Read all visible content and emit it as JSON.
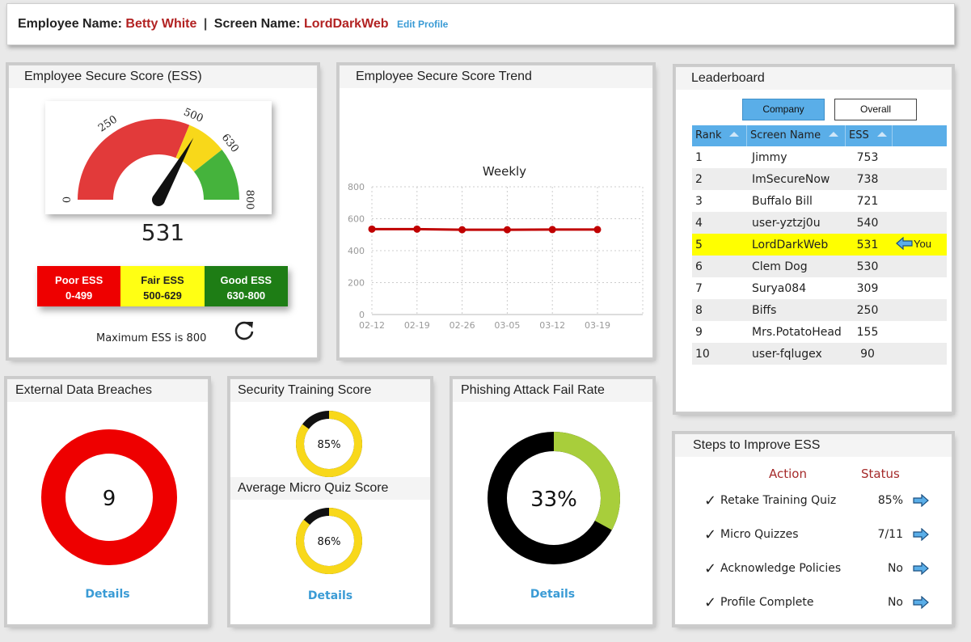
{
  "header": {
    "employee_label": "Employee Name:",
    "employee_name": "Betty White",
    "separator": "|",
    "screen_label": "Screen Name:",
    "screen_name": "LordDarkWeb",
    "edit_link": "Edit Profile"
  },
  "ess": {
    "title": "Employee Secure Score (ESS)",
    "score": "531",
    "score_value": 531,
    "gauge_ticks": [
      "0",
      "250",
      "500",
      "630",
      "800"
    ],
    "legend": [
      {
        "name": "Poor ESS",
        "range": "0-499",
        "bg": "#ee0000",
        "fg": "#ffffff"
      },
      {
        "name": "Fair ESS",
        "range": "500-629",
        "bg": "#ffff14",
        "fg": "#222222"
      },
      {
        "name": "Good ESS",
        "range": "630-800",
        "bg": "#1e7d15",
        "fg": "#ffffff"
      }
    ],
    "max_text": "Maximum ESS is 800",
    "colors": {
      "poor": "#e23a3a",
      "fair": "#f8d81a",
      "good": "#45b33c"
    }
  },
  "trend": {
    "title": "Employee Secure Score Trend",
    "line_color": "#c00000"
  },
  "chart_data": {
    "type": "line",
    "title": "Weekly",
    "xlabel": "",
    "ylabel": "",
    "categories": [
      "02-12",
      "02-19",
      "02-26",
      "03-05",
      "03-12",
      "03-19"
    ],
    "y_ticks": [
      "800",
      "600",
      "400",
      "200",
      "0"
    ],
    "ylim": [
      0,
      800
    ],
    "grid": true,
    "series": [
      {
        "values": [
          535,
          535,
          531,
          531,
          532,
          532
        ]
      }
    ]
  },
  "leaderboard": {
    "title": "Leaderboard",
    "tab_company": "Company",
    "tab_overall": "Overall",
    "columns": {
      "rank": "Rank",
      "name": "Screen Name",
      "ess": "ESS"
    },
    "rows": [
      {
        "rank": "1",
        "name": "Jimmy",
        "ess": "753"
      },
      {
        "rank": "2",
        "name": "ImSecureNow",
        "ess": "738"
      },
      {
        "rank": "3",
        "name": "Buffalo Bill",
        "ess": "721"
      },
      {
        "rank": "4",
        "name": "user-yztzj0u",
        "ess": "540"
      },
      {
        "rank": "5",
        "name": "LordDarkWeb",
        "ess": "531"
      },
      {
        "rank": "6",
        "name": "Clem Dog",
        "ess": "530"
      },
      {
        "rank": "7",
        "name": "Surya084",
        "ess": "309"
      },
      {
        "rank": "8",
        "name": "Biffs",
        "ess": "250"
      },
      {
        "rank": "9",
        "name": "Mrs.PotatoHead",
        "ess": "155"
      },
      {
        "rank": "10",
        "name": "user-fqlugex",
        "ess": "90"
      }
    ],
    "you_label": "You"
  },
  "breaches": {
    "title": "External Data Breaches",
    "count": "9",
    "details": "Details",
    "color": "#ee0000"
  },
  "training": {
    "title": "Security Training Score",
    "score_label": "85%",
    "score_fraction": 0.85,
    "quiz_title": "Average Micro Quiz Score",
    "quiz_label": "86%",
    "quiz_fraction": 0.86,
    "details": "Details",
    "color": "#f8d81a"
  },
  "phishing": {
    "title": "Phishing Attack Fail Rate",
    "rate_label": "33%",
    "rate_fraction": 0.33,
    "details": "Details",
    "fail_color": "#a8ce3b"
  },
  "steps": {
    "title": "Steps to Improve ESS",
    "action_header": "Action",
    "status_header": "Status",
    "items": [
      {
        "action": "Retake Training Quiz",
        "status": "85%"
      },
      {
        "action": "Micro Quizzes",
        "status": "7/11"
      },
      {
        "action": "Acknowledge Policies",
        "status": "No"
      },
      {
        "action": "Profile Complete",
        "status": "No"
      }
    ],
    "check": "✓"
  }
}
